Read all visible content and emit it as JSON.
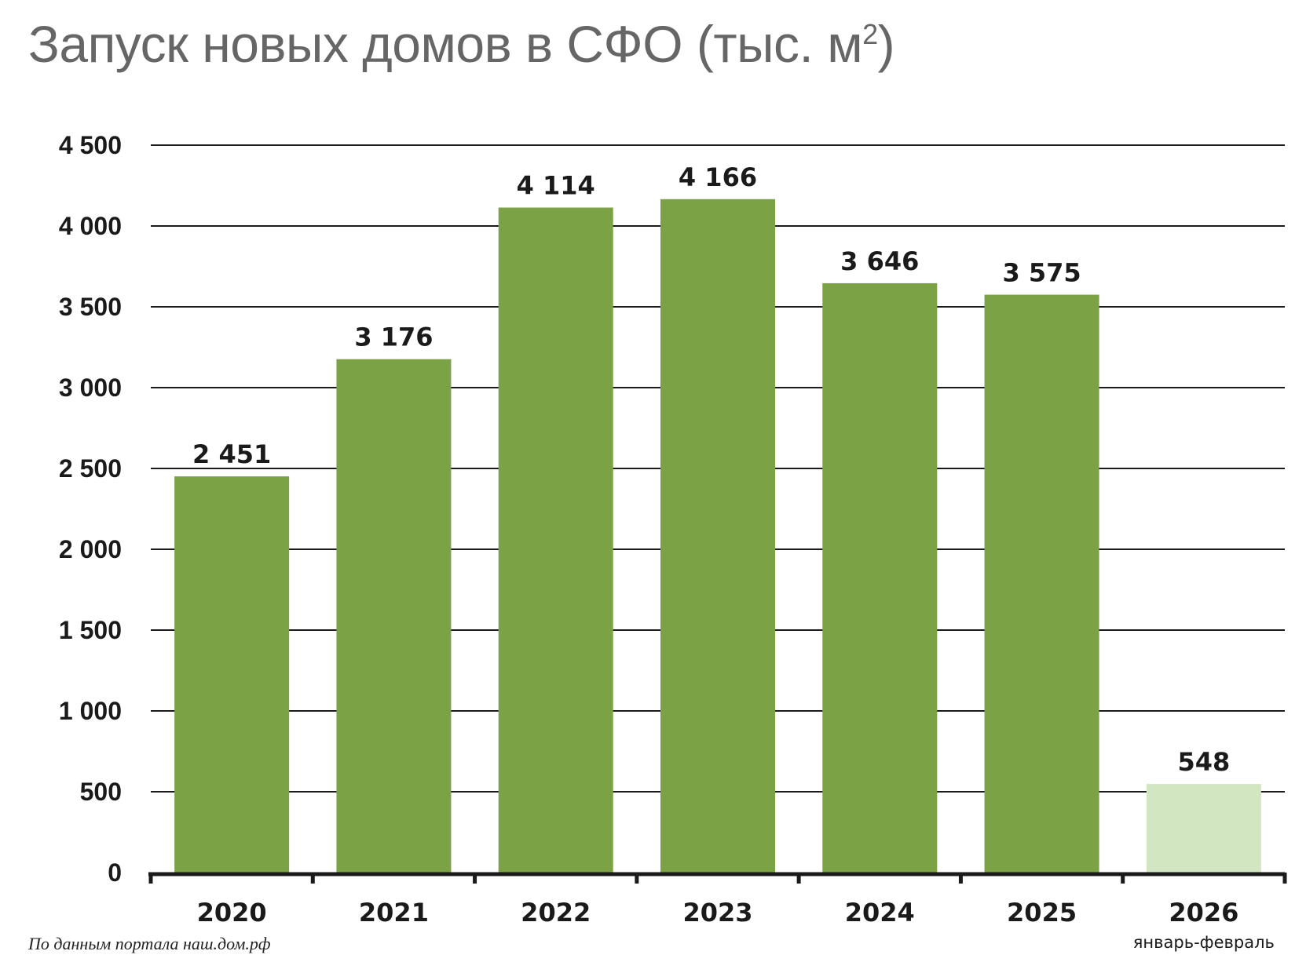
{
  "title": {
    "main": "Запуск новых домов в СФО (тыс. м",
    "sup": "2",
    "close": ")"
  },
  "source": "По данным портала наш.дом.рф",
  "chart_data": {
    "type": "bar",
    "title": "Запуск новых домов в СФО (тыс. м²)",
    "categories": [
      "2020",
      "2021",
      "2022",
      "2023",
      "2024",
      "2025",
      "2026"
    ],
    "category_sublabels": [
      "",
      "",
      "",
      "",
      "",
      "",
      "январь-февраль"
    ],
    "values": [
      2451,
      3176,
      4114,
      4166,
      3646,
      3575,
      548
    ],
    "value_labels": [
      "2 451",
      "3 176",
      "4 114",
      "4 166",
      "3 646",
      "3 575",
      "548"
    ],
    "ylim": [
      0,
      4500
    ],
    "yticks": [
      0,
      500,
      1000,
      1500,
      2000,
      2500,
      3000,
      3500,
      4000,
      4500
    ],
    "ytick_labels": [
      "0",
      "500",
      "1 000",
      "1 500",
      "2 000",
      "2 500",
      "3 000",
      "3 500",
      "4 000",
      "4 500"
    ],
    "grid": true,
    "colors": [
      "#7ba346",
      "#7ba346",
      "#7ba346",
      "#7ba346",
      "#7ba346",
      "#7ba346",
      "#d1e6c1"
    ],
    "grid_color": "#1a1a1a",
    "axis_color": "#1a1a1a"
  }
}
